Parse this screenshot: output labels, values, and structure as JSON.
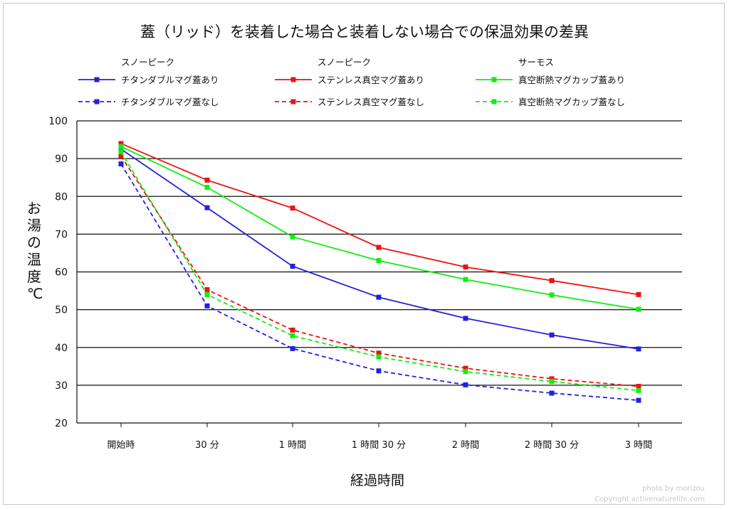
{
  "chart_data": {
    "type": "line",
    "title": "蓋（リッド）を装着した場合と装着しない場合での保温効果の差異",
    "xlabel": "経過時間",
    "ylabel": "お湯の温度℃",
    "categories": [
      "開始時",
      "30 分",
      "1 時間",
      "1 時間 30 分",
      "2 時間",
      "2 時間 30 分",
      "3 時間"
    ],
    "ylim": [
      20,
      100
    ],
    "yticks": [
      "20",
      "30",
      "40",
      "50",
      "60",
      "70",
      "80",
      "90",
      "100"
    ],
    "grid": "horizontal",
    "legend_position": "top",
    "series": [
      {
        "brand": "スノーピーク",
        "name": "チタンダブルマグ蓋あり",
        "color": "#2222dd",
        "style": "solid",
        "values": [
          92.5,
          77,
          61.5,
          53.3,
          47.7,
          43.3,
          39.6
        ]
      },
      {
        "brand": "",
        "name": "チタンダブルマグ蓋なし",
        "color": "#2222dd",
        "style": "dashed",
        "values": [
          88.6,
          51,
          39.7,
          33.8,
          30.1,
          27.9,
          26
        ]
      },
      {
        "brand": "スノーピーク",
        "name": "ステンレス真空マグ蓋あり",
        "color": "#ee1111",
        "style": "solid",
        "values": [
          94,
          84.3,
          76.9,
          66.5,
          61.3,
          57.7,
          54
        ]
      },
      {
        "brand": "",
        "name": "ステンレス真空マグ蓋なし",
        "color": "#ee1111",
        "style": "dashed",
        "values": [
          90.7,
          55.3,
          44.6,
          38.5,
          34.5,
          31.7,
          29.7
        ]
      },
      {
        "brand": "サーモス",
        "name": "真空断熱マグカップ蓋あり",
        "color": "#11ee11",
        "style": "solid",
        "values": [
          93.2,
          82.4,
          69.3,
          63,
          58,
          53.9,
          50.1
        ]
      },
      {
        "brand": "",
        "name": "真空断熱マグカップ蓋なし",
        "color": "#11ee11",
        "style": "dashed",
        "values": [
          91.8,
          54,
          43.1,
          37.5,
          33.6,
          31,
          28.6
        ]
      }
    ]
  },
  "credit": {
    "line1": "photo by morizou",
    "line2": "Copyright activenaturelife.com"
  }
}
